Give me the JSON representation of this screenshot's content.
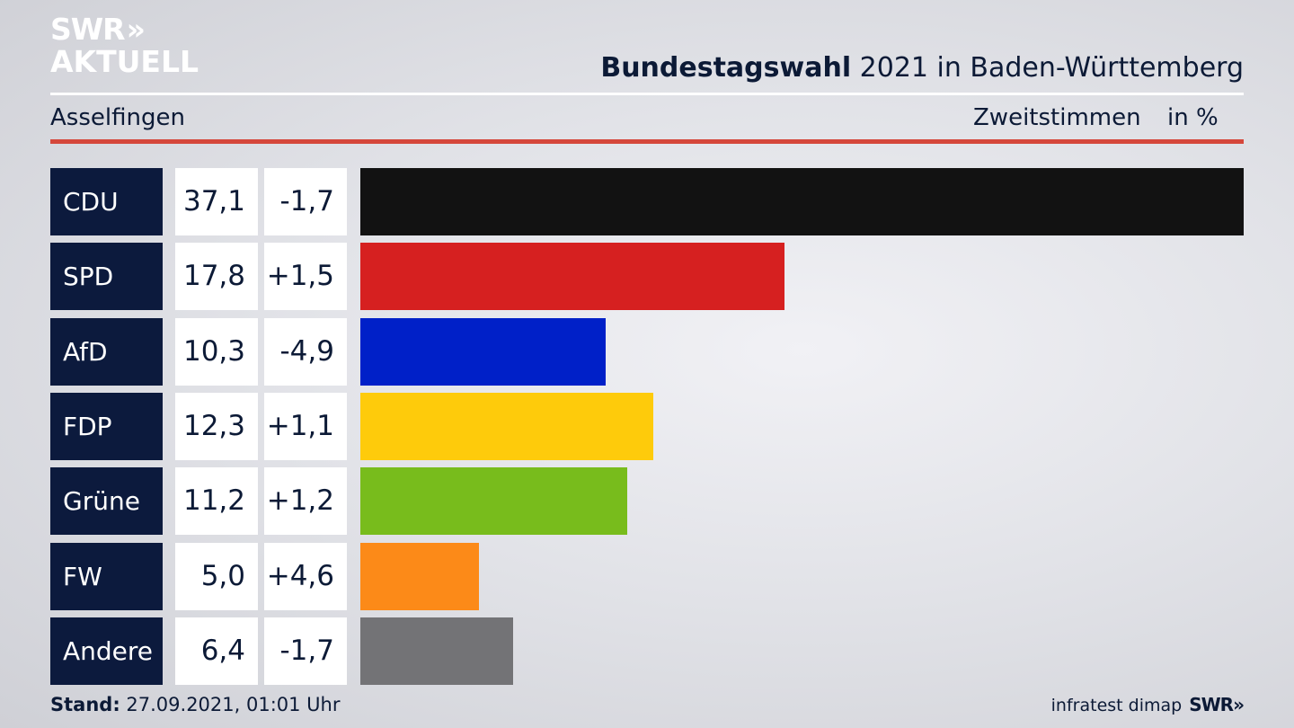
{
  "brand": {
    "logo_line1": "SWR",
    "logo_chevrons": "»",
    "logo_line2": "AKTUELL"
  },
  "header": {
    "title_bold": "Bundestagswahl",
    "title_rest": " 2021 in Baden-Württemberg",
    "location": "Asselfingen",
    "measure": "Zweitstimmen",
    "unit": "in %"
  },
  "colors": {
    "navy": "#0c1a3d",
    "accent_red_rule": "#d5473b",
    "CDU": "#121212",
    "SPD": "#d62020",
    "AfD": "#0020c8",
    "FDP": "#fecb0b",
    "Grüne": "#78bc1c",
    "FW": "#fc8a18",
    "Andere": "#737376"
  },
  "chart_data": {
    "type": "bar",
    "orientation": "horizontal",
    "categories": [
      "CDU",
      "SPD",
      "AfD",
      "FDP",
      "Grüne",
      "FW",
      "Andere"
    ],
    "values": [
      37.1,
      17.8,
      10.3,
      12.3,
      11.2,
      5.0,
      6.4
    ],
    "value_labels": [
      "37,1",
      "17,8",
      "10,3",
      "12,3",
      "11,2",
      "5,0",
      "6,4"
    ],
    "changes": [
      -1.7,
      1.5,
      -4.9,
      1.1,
      1.2,
      4.6,
      -1.7
    ],
    "change_labels": [
      "-1,7",
      "+1,5",
      "-4,9",
      "+1,1",
      "+1,2",
      "+4,6",
      "-1,7"
    ],
    "bar_colors": [
      "#121212",
      "#d62020",
      "#0020c8",
      "#fecb0b",
      "#78bc1c",
      "#fc8a18",
      "#737376"
    ],
    "xlim": [
      0,
      37.1
    ],
    "grid": false
  },
  "footer": {
    "stand_label": "Stand:",
    "stand_value": " 27.09.2021, 01:01 Uhr",
    "source": "infratest dimap",
    "source_brand": "SWR",
    "source_brand_chevrons": "»"
  }
}
